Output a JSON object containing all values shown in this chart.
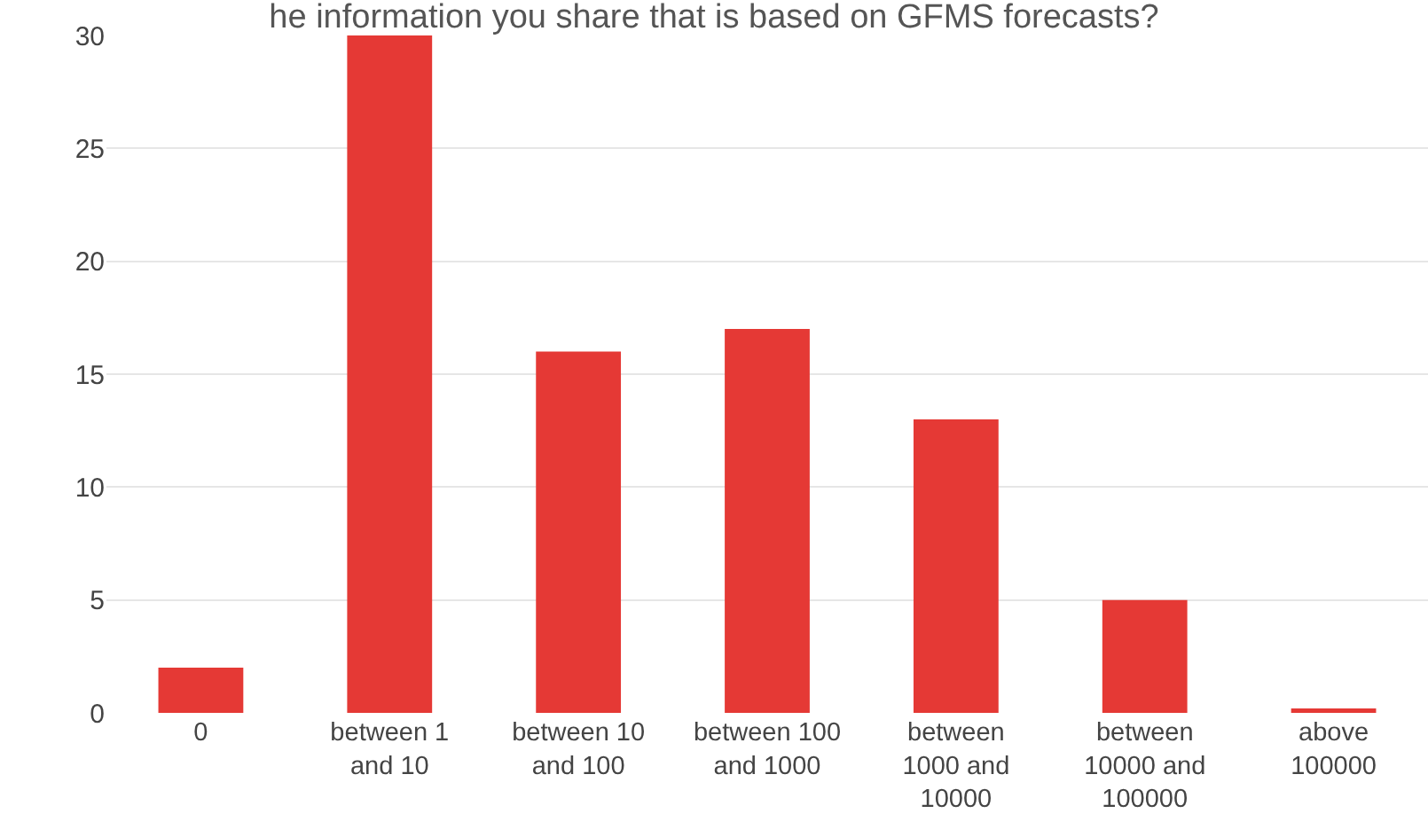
{
  "chart_data": {
    "type": "bar",
    "title": "he information you share that is based on GFMS forecasts?",
    "categories": [
      "0",
      "between 1\nand 10",
      "between 10\nand 100",
      "between 100\nand 1000",
      "between\n1000 and\n10000",
      "between\n10000 and\n100000",
      "above\n100000"
    ],
    "values": [
      2,
      30,
      16,
      17,
      13,
      5,
      0.2
    ],
    "color": "#e53935",
    "ylim": [
      0,
      30
    ],
    "yticks": [
      0,
      5,
      10,
      15,
      20,
      25,
      30
    ],
    "grid": "y"
  }
}
